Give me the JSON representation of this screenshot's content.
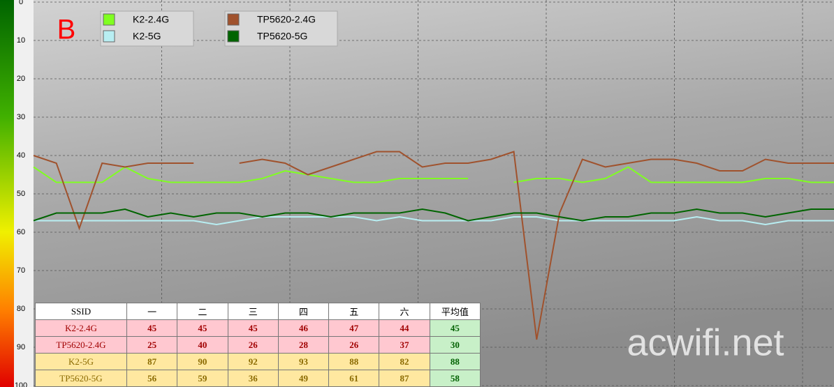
{
  "chart_data": {
    "type": "line",
    "label": "B",
    "categories": [
      null,
      null,
      null,
      null,
      null,
      null,
      null,
      null,
      null,
      null,
      null,
      null,
      null,
      null,
      null,
      null,
      null,
      null,
      null,
      null,
      null,
      null,
      null,
      null,
      null,
      null,
      null,
      null,
      null,
      null,
      null,
      null,
      null,
      null,
      null,
      null
    ],
    "series": [
      {
        "name": "K2-2.4G",
        "color": "#80ff20",
        "values": [
          43,
          47,
          47,
          47,
          43,
          46,
          47,
          47,
          47,
          47,
          46,
          44,
          45,
          46,
          47,
          47,
          46,
          46,
          46,
          46,
          null,
          47,
          46,
          46,
          47,
          46,
          43,
          47,
          47,
          47,
          47,
          47,
          46,
          46,
          47,
          47
        ]
      },
      {
        "name": "K2-5G",
        "color": "#b8eef2",
        "values": [
          57,
          57,
          57,
          57,
          57,
          57,
          57,
          57,
          58,
          57,
          56,
          56,
          56,
          56,
          56,
          57,
          56,
          57,
          57,
          57,
          57,
          56,
          56,
          57,
          57,
          57,
          57,
          57,
          57,
          56,
          57,
          57,
          58,
          57,
          57,
          57
        ]
      },
      {
        "name": "TP5620-2.4G",
        "color": "#a0522d",
        "values": [
          40,
          42,
          59,
          42,
          43,
          42,
          42,
          42,
          null,
          42,
          41,
          42,
          45,
          43,
          41,
          39,
          39,
          43,
          42,
          42,
          41,
          39,
          88,
          55,
          41,
          43,
          42,
          41,
          41,
          42,
          44,
          44,
          41,
          42,
          42,
          42
        ]
      },
      {
        "name": "TP5620-5G",
        "color": "#006400",
        "values": [
          57,
          55,
          55,
          55,
          54,
          56,
          55,
          56,
          55,
          55,
          56,
          55,
          55,
          56,
          55,
          55,
          55,
          54,
          55,
          57,
          56,
          55,
          55,
          56,
          57,
          56,
          56,
          55,
          55,
          54,
          55,
          55,
          56,
          55,
          54,
          54
        ]
      }
    ],
    "ylim": [
      0,
      100
    ],
    "y_reversed": true,
    "yticks": [
      0,
      10,
      20,
      30,
      40,
      50,
      60,
      70,
      80,
      90,
      100
    ],
    "grid": true,
    "legend_position": "upper left"
  },
  "table": {
    "header": [
      "SSID",
      "一",
      "二",
      "三",
      "四",
      "五",
      "六",
      "平均值"
    ],
    "rows": [
      [
        "K2-2.4G",
        45,
        45,
        45,
        46,
        47,
        44,
        45
      ],
      [
        "TP5620-2.4G",
        25,
        40,
        26,
        28,
        26,
        37,
        30
      ],
      [
        "K2-5G",
        87,
        90,
        92,
        93,
        88,
        82,
        88
      ],
      [
        "TP5620-5G",
        56,
        59,
        36,
        49,
        61,
        87,
        58
      ]
    ]
  },
  "watermark": "acwifi.net"
}
